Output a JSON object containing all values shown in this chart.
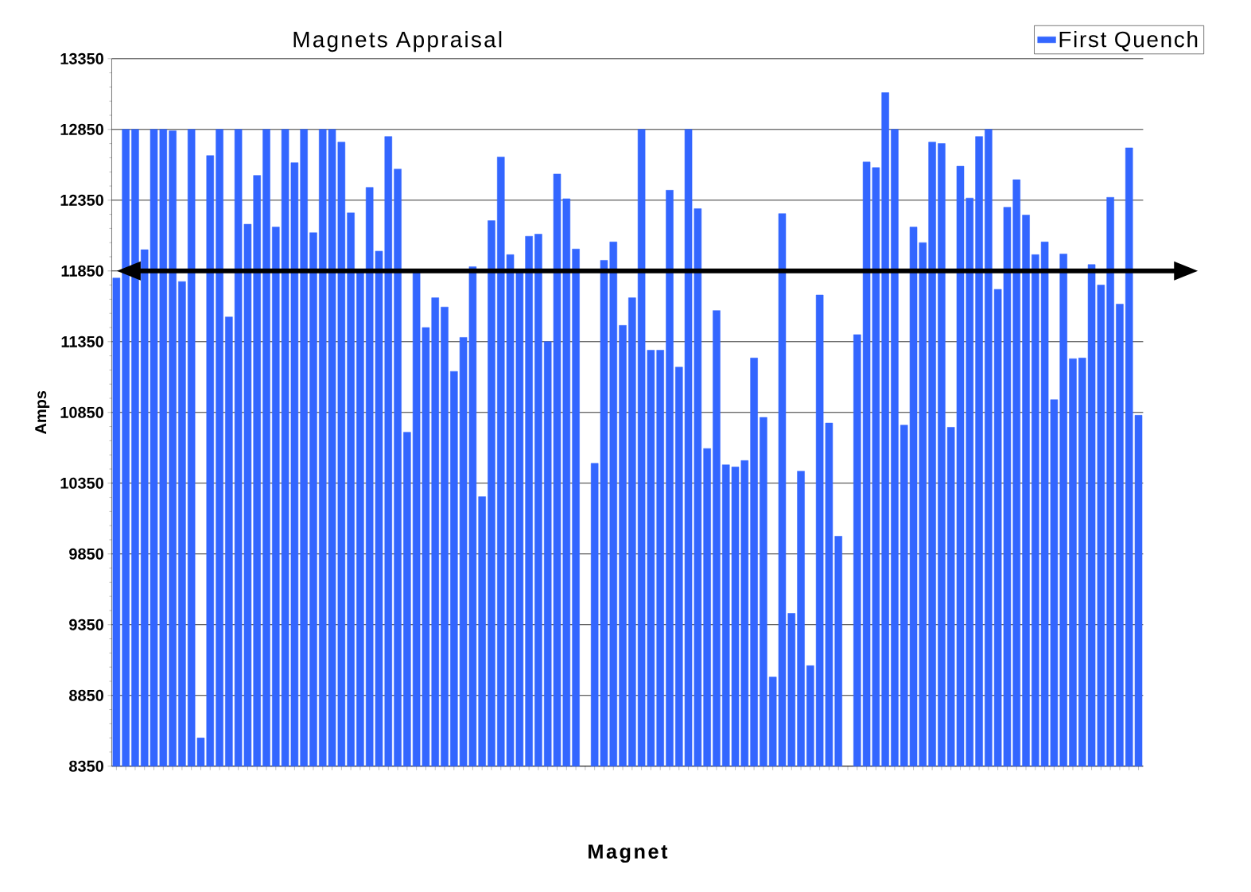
{
  "chart_data": {
    "type": "bar",
    "title": "Magnets Appraisal",
    "xlabel": "Magnet",
    "ylabel": "Amps",
    "categories": [
      null,
      null,
      null,
      null,
      null,
      null,
      null,
      null,
      null,
      null,
      null,
      null,
      null,
      null,
      null,
      null,
      null,
      null,
      null,
      null,
      null,
      null,
      null,
      null,
      null,
      null,
      null,
      null,
      null,
      null,
      null,
      null,
      null,
      null,
      null,
      null,
      null,
      null,
      null,
      null,
      null,
      null,
      null,
      null,
      null,
      null,
      null,
      null,
      null,
      null,
      null,
      null,
      null,
      null,
      null,
      null,
      null,
      null,
      null,
      null,
      null,
      null,
      null,
      null,
      null,
      null,
      null,
      null,
      null,
      null,
      null,
      null,
      null,
      null,
      null,
      null,
      null,
      null,
      null,
      null,
      null,
      null,
      null,
      null,
      null,
      null,
      null,
      null,
      null,
      null,
      null,
      null,
      null,
      null,
      null,
      null,
      null,
      null,
      null,
      null,
      null,
      null,
      null,
      null,
      null,
      null,
      null,
      null,
      null,
      null
    ],
    "series": [
      {
        "name": "First Quench",
        "color": "#3366ff",
        "values": [
          11800,
          12850,
          12850,
          12000,
          12850,
          12850,
          12840,
          11775,
          12850,
          8550,
          12665,
          12850,
          11525,
          12850,
          12180,
          12525,
          12850,
          12160,
          12850,
          12615,
          12850,
          12120,
          12850,
          12850,
          12760,
          12260,
          11840,
          12440,
          11990,
          12800,
          12570,
          10710,
          11840,
          11450,
          11660,
          11595,
          11140,
          11380,
          11880,
          10255,
          12205,
          12655,
          11965,
          11840,
          12095,
          12110,
          11350,
          12535,
          12360,
          12005,
          null,
          10490,
          11925,
          12055,
          11465,
          11660,
          12850,
          11290,
          11290,
          12420,
          11170,
          12850,
          12290,
          10595,
          11570,
          10480,
          10465,
          10510,
          11235,
          10815,
          8980,
          12255,
          9430,
          10435,
          9060,
          11680,
          10775,
          9975,
          null,
          11400,
          12620,
          12580,
          13110,
          12850,
          10760,
          12160,
          12050,
          12760,
          12750,
          10745,
          12590,
          12365,
          12800,
          12850,
          11720,
          12300,
          12495,
          12245,
          11965,
          12055,
          10940,
          11970,
          11230,
          11235,
          11895,
          11750,
          12370,
          11615,
          12720,
          10830
        ]
      }
    ],
    "ylim": [
      8350,
      13350
    ],
    "yticks": [
      8350,
      8850,
      9350,
      9850,
      10350,
      10850,
      11350,
      11850,
      12350,
      12850,
      13350
    ],
    "grid": "y",
    "legend": "top right",
    "tick_labels": "y",
    "ref_lines": [
      {
        "axis": "y",
        "value": 11850,
        "color": "#000000"
      }
    ]
  }
}
